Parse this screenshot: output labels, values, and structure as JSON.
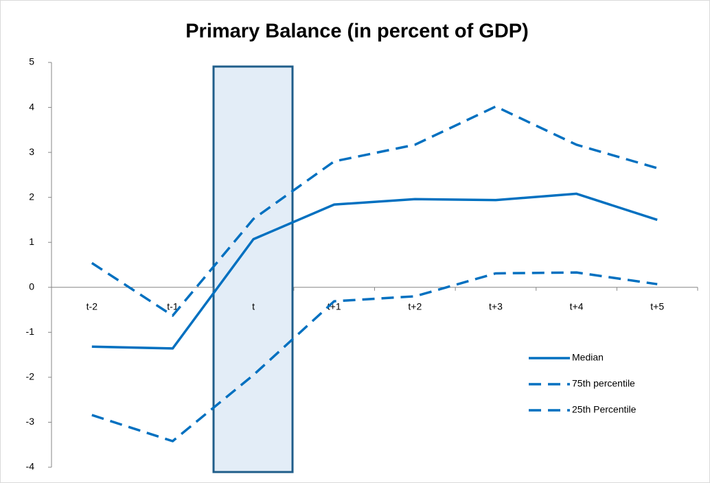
{
  "chart_data": {
    "type": "line",
    "title": "Primary Balance (in percent of GDP)",
    "categories": [
      "t-2",
      "t-1",
      "t",
      "t+1",
      "t+2",
      "t+3",
      "t+4",
      "t+5"
    ],
    "series": [
      {
        "name": "Median",
        "color": "#0070c0",
        "style": "solid",
        "values": [
          -1.32,
          -1.36,
          1.07,
          1.84,
          1.96,
          1.94,
          2.08,
          1.5
        ]
      },
      {
        "name": "75th percentile",
        "color": "#0070c0",
        "style": "dashed",
        "values": [
          0.54,
          -0.63,
          1.52,
          2.8,
          3.17,
          4.02,
          3.17,
          2.65
        ]
      },
      {
        "name": "25th Percentile",
        "color": "#0070c0",
        "style": "dashed",
        "values": [
          -2.84,
          -3.42,
          -1.95,
          -0.31,
          -0.2,
          0.31,
          0.33,
          0.07
        ]
      }
    ],
    "ylim": [
      -4,
      5
    ],
    "yticks": [
      -4,
      -3,
      -2,
      -1,
      0,
      1,
      2,
      3,
      4,
      5
    ],
    "legend": "lower right"
  }
}
